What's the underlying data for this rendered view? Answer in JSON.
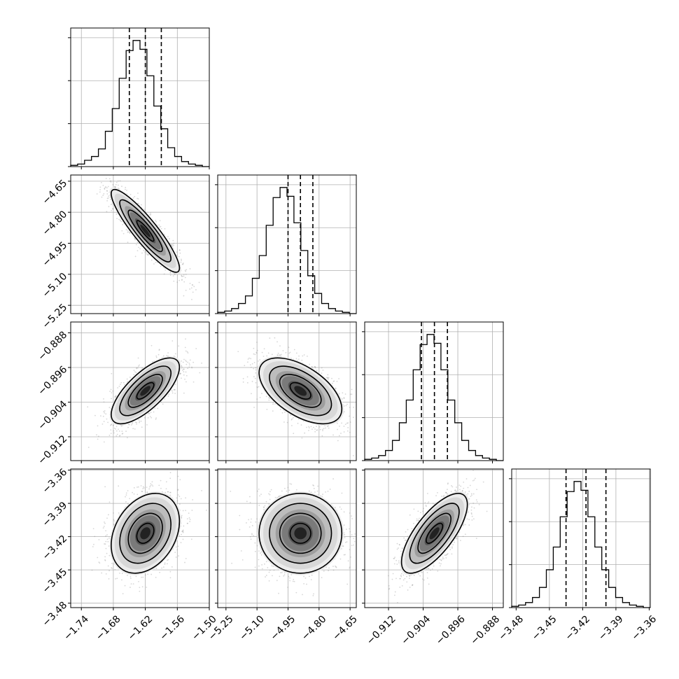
{
  "chart_data": {
    "type": "corner",
    "parameters": 4,
    "grid": true,
    "colors": {
      "hist": "#000000",
      "grid": "#b0b0b0",
      "points": "#8c8c8c",
      "contour": "#000000"
    },
    "axes": [
      {
        "range": [
          -1.76,
          -1.5
        ],
        "ticks": [
          -1.74,
          -1.68,
          -1.62,
          -1.56,
          -1.5
        ],
        "tick_labels": [
          "−1.74",
          "−1.68",
          "−1.62",
          "−1.56",
          "−1.50"
        ]
      },
      {
        "range": [
          -5.29,
          -4.62
        ],
        "ticks": [
          -5.25,
          -5.1,
          -4.95,
          -4.8,
          -4.65
        ],
        "tick_labels": [
          "−5.25",
          "−5.10",
          "−4.95",
          "−4.80",
          "−4.65"
        ]
      },
      {
        "range": [
          -0.9175,
          -0.8855
        ],
        "ticks": [
          -0.912,
          -0.904,
          -0.896,
          -0.888
        ],
        "tick_labels": [
          "−0.912",
          "−0.904",
          "−0.896",
          "−0.888"
        ]
      },
      {
        "range": [
          -3.484,
          -3.359
        ],
        "ticks": [
          -3.48,
          -3.45,
          -3.42,
          -3.39,
          -3.36
        ],
        "tick_labels": [
          "−3.48",
          "−3.45",
          "−3.42",
          "−3.39",
          "−3.36"
        ]
      }
    ],
    "marginals": [
      {
        "quantiles": [
          -1.65,
          -1.62,
          -1.59
        ],
        "counts": [
          1,
          2,
          5,
          8,
          14,
          28,
          46,
          70,
          92,
          100,
          93,
          72,
          48,
          30,
          15,
          8,
          4,
          2,
          1,
          0
        ]
      },
      {
        "quantiles": [
          -4.95,
          -4.89,
          -4.83
        ],
        "counts": [
          1,
          2,
          4,
          8,
          14,
          28,
          46,
          70,
          92,
          100,
          93,
          72,
          50,
          30,
          16,
          8,
          4,
          2,
          1,
          0
        ]
      },
      {
        "quantiles": [
          -0.9044,
          -0.9014,
          -0.8984
        ],
        "counts": [
          1,
          2,
          4,
          8,
          16,
          30,
          48,
          72,
          92,
          100,
          93,
          72,
          48,
          30,
          16,
          8,
          4,
          2,
          1,
          0
        ]
      },
      {
        "quantiles": [
          -3.435,
          -3.417,
          -3.399
        ],
        "counts": [
          1,
          2,
          4,
          8,
          16,
          30,
          48,
          72,
          92,
          100,
          93,
          72,
          48,
          30,
          16,
          8,
          4,
          2,
          1,
          0
        ]
      }
    ],
    "pairs": [
      {
        "x": 0,
        "y": 1,
        "mean": [
          -1.62,
          -4.89
        ],
        "sd": [
          0.032,
          0.1
        ],
        "rho": -0.9
      },
      {
        "x": 0,
        "y": 2,
        "mean": [
          -1.62,
          -0.9014
        ],
        "sd": [
          0.032,
          0.0038
        ],
        "rho": 0.72
      },
      {
        "x": 1,
        "y": 2,
        "mean": [
          -4.89,
          -0.9014
        ],
        "sd": [
          0.1,
          0.0038
        ],
        "rho": -0.55
      },
      {
        "x": 0,
        "y": 3,
        "mean": [
          -1.62,
          -3.417
        ],
        "sd": [
          0.032,
          0.018
        ],
        "rho": 0.3
      },
      {
        "x": 1,
        "y": 3,
        "mean": [
          -4.89,
          -3.417
        ],
        "sd": [
          0.1,
          0.018
        ],
        "rho": 0.0
      },
      {
        "x": 2,
        "y": 3,
        "mean": [
          -0.9014,
          -3.417
        ],
        "sd": [
          0.0038,
          0.018
        ],
        "rho": 0.72
      }
    ]
  }
}
